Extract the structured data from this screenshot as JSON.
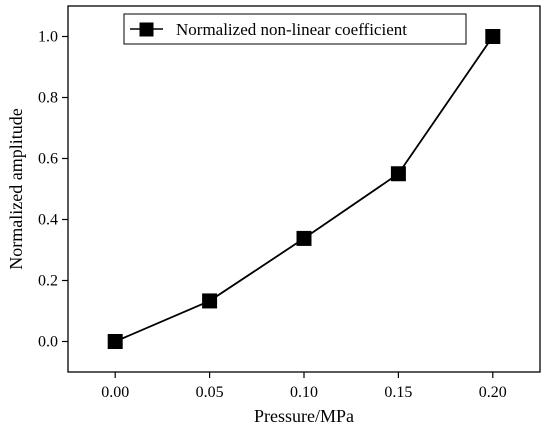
{
  "chart_data": {
    "type": "line",
    "title": "",
    "xlabel": "Pressure/MPa",
    "ylabel": "Normalized amplitude",
    "xlim": [
      -0.025,
      0.225
    ],
    "ylim": [
      -0.1,
      1.1
    ],
    "xticks": [
      0.0,
      0.05,
      0.1,
      0.15,
      0.2
    ],
    "xtick_labels": [
      "0.00",
      "0.05",
      "0.10",
      "0.15",
      "0.20"
    ],
    "yticks": [
      0.0,
      0.2,
      0.4,
      0.6,
      0.8,
      1.0
    ],
    "ytick_labels": [
      "0.0",
      "0.2",
      "0.4",
      "0.6",
      "0.8",
      "1.0"
    ],
    "grid": false,
    "legend_position": "top-left",
    "series": [
      {
        "name": "Normalized non-linear coefficient",
        "marker": "square",
        "color": "#000000",
        "x": [
          0.0,
          0.05,
          0.1,
          0.15,
          0.2
        ],
        "y": [
          0.0,
          0.133,
          0.338,
          0.55,
          1.0
        ]
      }
    ]
  }
}
